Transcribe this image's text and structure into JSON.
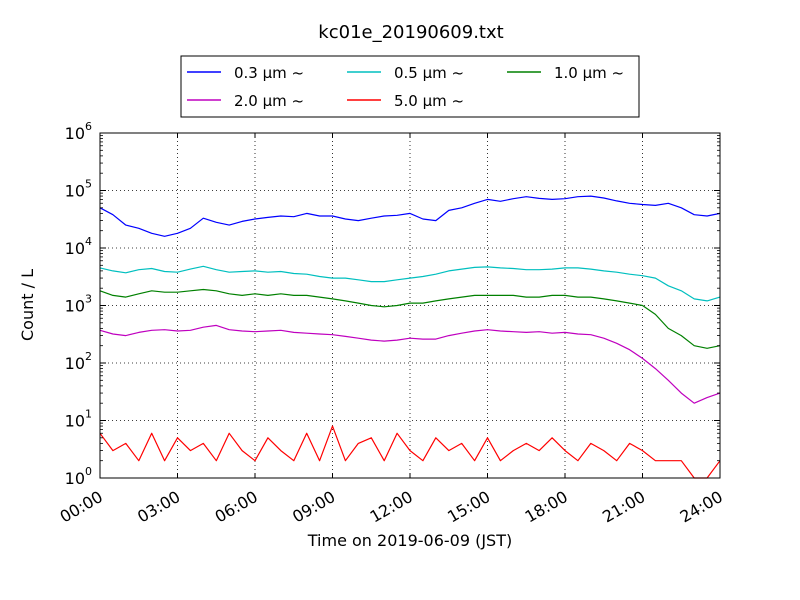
{
  "chart_data": {
    "type": "line",
    "title": "kc01e_20190609.txt",
    "xlabel": "Time on 2019-06-09 (JST)",
    "ylabel": "Count / L",
    "yscale": "log",
    "ylim": [
      1,
      1000000
    ],
    "xlim": [
      "00:00",
      "24:00"
    ],
    "grid": true,
    "legend_placement": "top-center",
    "x_ticks": [
      "00:00",
      "03:00",
      "06:00",
      "09:00",
      "12:00",
      "15:00",
      "18:00",
      "21:00",
      "24:00"
    ],
    "y_ticks": [
      {
        "base": "10",
        "exp": "0"
      },
      {
        "base": "10",
        "exp": "1"
      },
      {
        "base": "10",
        "exp": "2"
      },
      {
        "base": "10",
        "exp": "3"
      },
      {
        "base": "10",
        "exp": "4"
      },
      {
        "base": "10",
        "exp": "5"
      },
      {
        "base": "10",
        "exp": "6"
      }
    ],
    "series": [
      {
        "name": "0.3 μm ~",
        "color": "#0000ff",
        "x": [
          "00:00",
          "00:30",
          "01:00",
          "01:30",
          "02:00",
          "02:30",
          "03:00",
          "03:30",
          "04:00",
          "04:30",
          "05:00",
          "05:30",
          "06:00",
          "06:30",
          "07:00",
          "07:30",
          "08:00",
          "08:30",
          "09:00",
          "09:30",
          "10:00",
          "10:30",
          "11:00",
          "11:30",
          "12:00",
          "12:30",
          "13:00",
          "13:30",
          "14:00",
          "14:30",
          "15:00",
          "15:30",
          "16:00",
          "16:30",
          "17:00",
          "17:30",
          "18:00",
          "18:30",
          "19:00",
          "19:30",
          "20:00",
          "20:30",
          "21:00",
          "21:30",
          "22:00",
          "22:30",
          "23:00",
          "23:30",
          "24:00"
        ],
        "values": [
          50000,
          38000,
          25000,
          22000,
          18000,
          16000,
          18000,
          22000,
          33000,
          28000,
          25000,
          29000,
          32000,
          34000,
          36000,
          35000,
          40000,
          36000,
          36000,
          32000,
          30000,
          33000,
          36000,
          37000,
          40000,
          32000,
          30000,
          45000,
          50000,
          60000,
          70000,
          65000,
          72000,
          78000,
          73000,
          70000,
          72000,
          78000,
          80000,
          74000,
          66000,
          60000,
          57000,
          55000,
          60000,
          50000,
          38000,
          36000,
          40000
        ]
      },
      {
        "name": "0.5 μm ~",
        "color": "#00bfbf",
        "x": [
          "00:00",
          "00:30",
          "01:00",
          "01:30",
          "02:00",
          "02:30",
          "03:00",
          "03:30",
          "04:00",
          "04:30",
          "05:00",
          "05:30",
          "06:00",
          "06:30",
          "07:00",
          "07:30",
          "08:00",
          "08:30",
          "09:00",
          "09:30",
          "10:00",
          "10:30",
          "11:00",
          "11:30",
          "12:00",
          "12:30",
          "13:00",
          "13:30",
          "14:00",
          "14:30",
          "15:00",
          "15:30",
          "16:00",
          "16:30",
          "17:00",
          "17:30",
          "18:00",
          "18:30",
          "19:00",
          "19:30",
          "20:00",
          "20:30",
          "21:00",
          "21:30",
          "22:00",
          "22:30",
          "23:00",
          "23:30",
          "24:00"
        ],
        "values": [
          4500,
          4000,
          3700,
          4200,
          4400,
          3900,
          3800,
          4300,
          4800,
          4200,
          3800,
          3900,
          4000,
          3800,
          3900,
          3600,
          3500,
          3200,
          3000,
          3000,
          2800,
          2600,
          2600,
          2800,
          3000,
          3200,
          3500,
          4000,
          4300,
          4600,
          4700,
          4500,
          4400,
          4200,
          4200,
          4300,
          4500,
          4500,
          4300,
          4000,
          3800,
          3500,
          3300,
          3000,
          2200,
          1800,
          1300,
          1200,
          1400
        ]
      },
      {
        "name": "1.0 μm ~",
        "color": "#008000",
        "x": [
          "00:00",
          "00:30",
          "01:00",
          "01:30",
          "02:00",
          "02:30",
          "03:00",
          "03:30",
          "04:00",
          "04:30",
          "05:00",
          "05:30",
          "06:00",
          "06:30",
          "07:00",
          "07:30",
          "08:00",
          "08:30",
          "09:00",
          "09:30",
          "10:00",
          "10:30",
          "11:00",
          "11:30",
          "12:00",
          "12:30",
          "13:00",
          "13:30",
          "14:00",
          "14:30",
          "15:00",
          "15:30",
          "16:00",
          "16:30",
          "17:00",
          "17:30",
          "18:00",
          "18:30",
          "19:00",
          "19:30",
          "20:00",
          "20:30",
          "21:00",
          "21:30",
          "22:00",
          "22:30",
          "23:00",
          "23:30",
          "24:00"
        ],
        "values": [
          1800,
          1500,
          1400,
          1600,
          1800,
          1700,
          1700,
          1800,
          1900,
          1800,
          1600,
          1500,
          1600,
          1500,
          1600,
          1500,
          1500,
          1400,
          1300,
          1200,
          1100,
          1000,
          950,
          1000,
          1100,
          1100,
          1200,
          1300,
          1400,
          1500,
          1500,
          1500,
          1500,
          1400,
          1400,
          1500,
          1500,
          1400,
          1400,
          1300,
          1200,
          1100,
          1000,
          700,
          400,
          300,
          200,
          180,
          200
        ]
      },
      {
        "name": "2.0 μm ~",
        "color": "#bf00bf",
        "x": [
          "00:00",
          "00:30",
          "01:00",
          "01:30",
          "02:00",
          "02:30",
          "03:00",
          "03:30",
          "04:00",
          "04:30",
          "05:00",
          "05:30",
          "06:00",
          "06:30",
          "07:00",
          "07:30",
          "08:00",
          "08:30",
          "09:00",
          "09:30",
          "10:00",
          "10:30",
          "11:00",
          "11:30",
          "12:00",
          "12:30",
          "13:00",
          "13:30",
          "14:00",
          "14:30",
          "15:00",
          "15:30",
          "16:00",
          "16:30",
          "17:00",
          "17:30",
          "18:00",
          "18:30",
          "19:00",
          "19:30",
          "20:00",
          "20:30",
          "21:00",
          "21:30",
          "22:00",
          "22:30",
          "23:00",
          "23:30",
          "24:00"
        ],
        "values": [
          370,
          320,
          300,
          340,
          370,
          380,
          360,
          370,
          420,
          450,
          380,
          360,
          350,
          360,
          370,
          340,
          330,
          320,
          310,
          290,
          270,
          250,
          240,
          250,
          270,
          260,
          260,
          300,
          330,
          360,
          380,
          360,
          350,
          340,
          350,
          330,
          340,
          320,
          310,
          270,
          220,
          170,
          120,
          80,
          50,
          30,
          20,
          25,
          30
        ]
      },
      {
        "name": "5.0 μm ~",
        "color": "#ff0000",
        "x": [
          "00:00",
          "00:30",
          "01:00",
          "01:30",
          "02:00",
          "02:30",
          "03:00",
          "03:30",
          "04:00",
          "04:30",
          "05:00",
          "05:30",
          "06:00",
          "06:30",
          "07:00",
          "07:30",
          "08:00",
          "08:30",
          "09:00",
          "09:30",
          "10:00",
          "10:30",
          "11:00",
          "11:30",
          "12:00",
          "12:30",
          "13:00",
          "13:30",
          "14:00",
          "14:30",
          "15:00",
          "15:30",
          "16:00",
          "16:30",
          "17:00",
          "17:30",
          "18:00",
          "18:30",
          "19:00",
          "19:30",
          "20:00",
          "20:30",
          "21:00",
          "21:30",
          "22:00",
          "22:30",
          "23:00",
          "23:30",
          "24:00"
        ],
        "values": [
          6,
          3,
          4,
          2,
          6,
          2,
          5,
          3,
          4,
          2,
          6,
          3,
          2,
          5,
          3,
          2,
          6,
          2,
          8,
          2,
          4,
          5,
          2,
          6,
          3,
          2,
          5,
          3,
          4,
          2,
          5,
          2,
          3,
          4,
          3,
          5,
          3,
          2,
          4,
          3,
          2,
          4,
          3,
          2,
          2,
          2,
          1,
          1,
          2
        ]
      }
    ]
  }
}
